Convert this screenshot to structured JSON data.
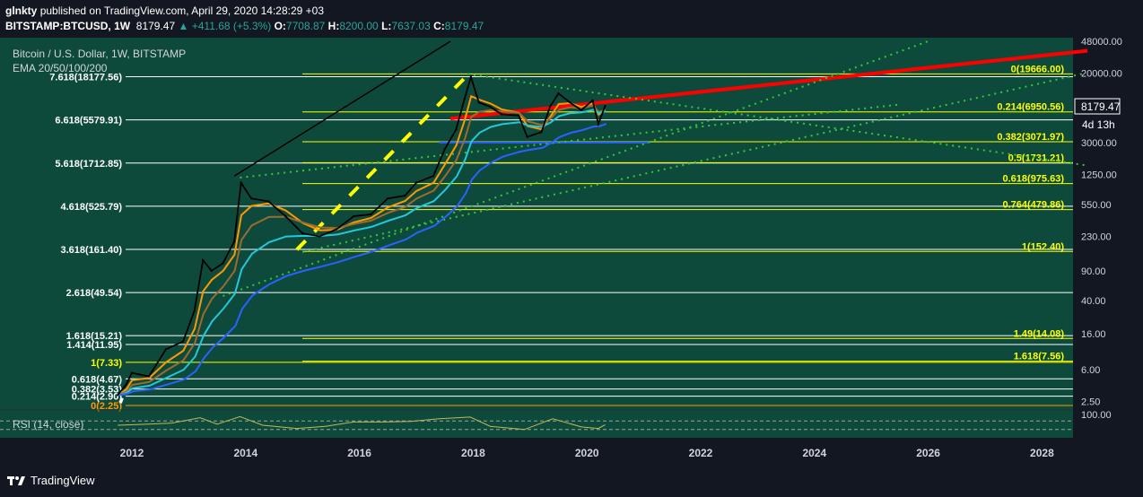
{
  "header": {
    "line1_user": "glnkty",
    "line1_rest": "published on TradingView.com, April 29, 2020 14:28:29 +03",
    "symbol": "BITSTAMP:BTCUSD, 1W",
    "last": "8179.47",
    "change": "▲ +411.68 (+5.3%)",
    "o_label": "O:",
    "o": "7708.87",
    "h_label": "H:",
    "h": "8200.00",
    "l_label": "L:",
    "l": "7637.03",
    "c_label": "C:",
    "c": "8179.47"
  },
  "legend": {
    "title": "Bitcoin / U.S. Dollar, 1W, BITSTAMP",
    "ema": "EMA 20/50/100/200",
    "rsi": "RSI (14, close)"
  },
  "price_tag": {
    "value": "8179.47",
    "countdown": "4d 13h"
  },
  "footer": {
    "brand": "TradingView"
  },
  "colors": {
    "background": "#0d4a3b",
    "fib_yellow": "#ffff00",
    "fib_white": "#ffffff",
    "trend_red": "#ff0000",
    "trend_green_dotted": "#37c837",
    "ema20": "#ff9800",
    "ema50": "#9c6b30",
    "ema100": "#26c6da",
    "ema200": "#2962ff"
  },
  "chart_data": {
    "type": "line",
    "title": "Bitcoin / U.S. Dollar, 1W, BITSTAMP",
    "y_scale": "log",
    "x_ticks": [
      "2012",
      "2014",
      "2016",
      "2018",
      "2020",
      "2022",
      "2024",
      "2026",
      "2028"
    ],
    "y_ticks": [
      "48000.00",
      "20000.00",
      "3000.00",
      "1250.00",
      "550.00",
      "230.00",
      "90.00",
      "40.00",
      "16.00",
      "6.00",
      "2.50"
    ],
    "rsi_ticks": [
      "100.00"
    ],
    "left_fib_levels": [
      {
        "label": "7.618(18177.56)",
        "value": 18177.56,
        "color": "white"
      },
      {
        "label": "6.618(5579.91)",
        "value": 5579.91,
        "color": "white"
      },
      {
        "label": "5.618(1712.85)",
        "value": 1712.85,
        "color": "white"
      },
      {
        "label": "4.618(525.79)",
        "value": 525.79,
        "color": "white"
      },
      {
        "label": "3.618(161.40)",
        "value": 161.4,
        "color": "white"
      },
      {
        "label": "2.618(49.54)",
        "value": 49.54,
        "color": "white"
      },
      {
        "label": "1.618(15.21)",
        "value": 15.21,
        "color": "white"
      },
      {
        "label": "1.414(11.95)",
        "value": 11.95,
        "color": "white"
      },
      {
        "label": "1(7.33)",
        "value": 7.33,
        "color": "yellow"
      },
      {
        "label": "0.618(4.67)",
        "value": 4.67,
        "color": "white"
      },
      {
        "label": "0.382(3.53)",
        "value": 3.53,
        "color": "white"
      },
      {
        "label": "0.214(2.90)",
        "value": 2.9,
        "color": "white"
      },
      {
        "label": "0(2.25)",
        "value": 2.25,
        "color": "orange"
      }
    ],
    "right_fib_levels": [
      {
        "label": "0(19666.00)",
        "value": 19666.0
      },
      {
        "label": "0.214(6950.56)",
        "value": 6950.56
      },
      {
        "label": "0.382(3071.97)",
        "value": 3071.97
      },
      {
        "label": "0.5(1731.21)",
        "value": 1731.21
      },
      {
        "label": "0.618(975.63)",
        "value": 975.63
      },
      {
        "label": "0.764(479.86)",
        "value": 479.86
      },
      {
        "label": "1(152.40)",
        "value": 152.4
      },
      {
        "label": "1.49(14.08)",
        "value": 14.08
      },
      {
        "label": "1.618(7.56)",
        "value": 7.56
      }
    ],
    "price_series": [
      [
        2011.75,
        3.0
      ],
      [
        2011.9,
        4.0
      ],
      [
        2012.0,
        5.5
      ],
      [
        2012.3,
        5.0
      ],
      [
        2012.6,
        10.5
      ],
      [
        2012.9,
        13.0
      ],
      [
        2013.1,
        30.0
      ],
      [
        2013.25,
        120.0
      ],
      [
        2013.4,
        90.0
      ],
      [
        2013.6,
        110.0
      ],
      [
        2013.8,
        200.0
      ],
      [
        2013.92,
        1000.0
      ],
      [
        2014.1,
        650.0
      ],
      [
        2014.4,
        600.0
      ],
      [
        2014.7,
        400.0
      ],
      [
        2015.0,
        250.0
      ],
      [
        2015.3,
        230.0
      ],
      [
        2015.6,
        280.0
      ],
      [
        2015.9,
        400.0
      ],
      [
        2016.2,
        420.0
      ],
      [
        2016.5,
        650.0
      ],
      [
        2016.8,
        700.0
      ],
      [
        2017.0,
        1000.0
      ],
      [
        2017.3,
        1200.0
      ],
      [
        2017.5,
        2500.0
      ],
      [
        2017.7,
        4300.0
      ],
      [
        2017.85,
        10000.0
      ],
      [
        2017.96,
        18000.0
      ],
      [
        2018.1,
        9000.0
      ],
      [
        2018.3,
        8000.0
      ],
      [
        2018.5,
        6500.0
      ],
      [
        2018.8,
        6300.0
      ],
      [
        2018.95,
        3500.0
      ],
      [
        2019.2,
        4000.0
      ],
      [
        2019.35,
        8000.0
      ],
      [
        2019.5,
        11500.0
      ],
      [
        2019.7,
        9000.0
      ],
      [
        2019.9,
        7300.0
      ],
      [
        2020.1,
        9500.0
      ],
      [
        2020.2,
        5000.0
      ],
      [
        2020.32,
        8179.47
      ]
    ],
    "rsi_series": [
      [
        2011.75,
        50
      ],
      [
        2012.3,
        55
      ],
      [
        2012.7,
        60
      ],
      [
        2013.2,
        85
      ],
      [
        2013.5,
        55
      ],
      [
        2013.9,
        90
      ],
      [
        2014.3,
        50
      ],
      [
        2014.9,
        35
      ],
      [
        2015.4,
        45
      ],
      [
        2015.9,
        65
      ],
      [
        2016.4,
        65
      ],
      [
        2016.9,
        68
      ],
      [
        2017.4,
        80
      ],
      [
        2017.95,
        88
      ],
      [
        2018.3,
        45
      ],
      [
        2018.9,
        30
      ],
      [
        2019.4,
        80
      ],
      [
        2019.9,
        42
      ],
      [
        2020.2,
        35
      ],
      [
        2020.32,
        52
      ]
    ]
  }
}
